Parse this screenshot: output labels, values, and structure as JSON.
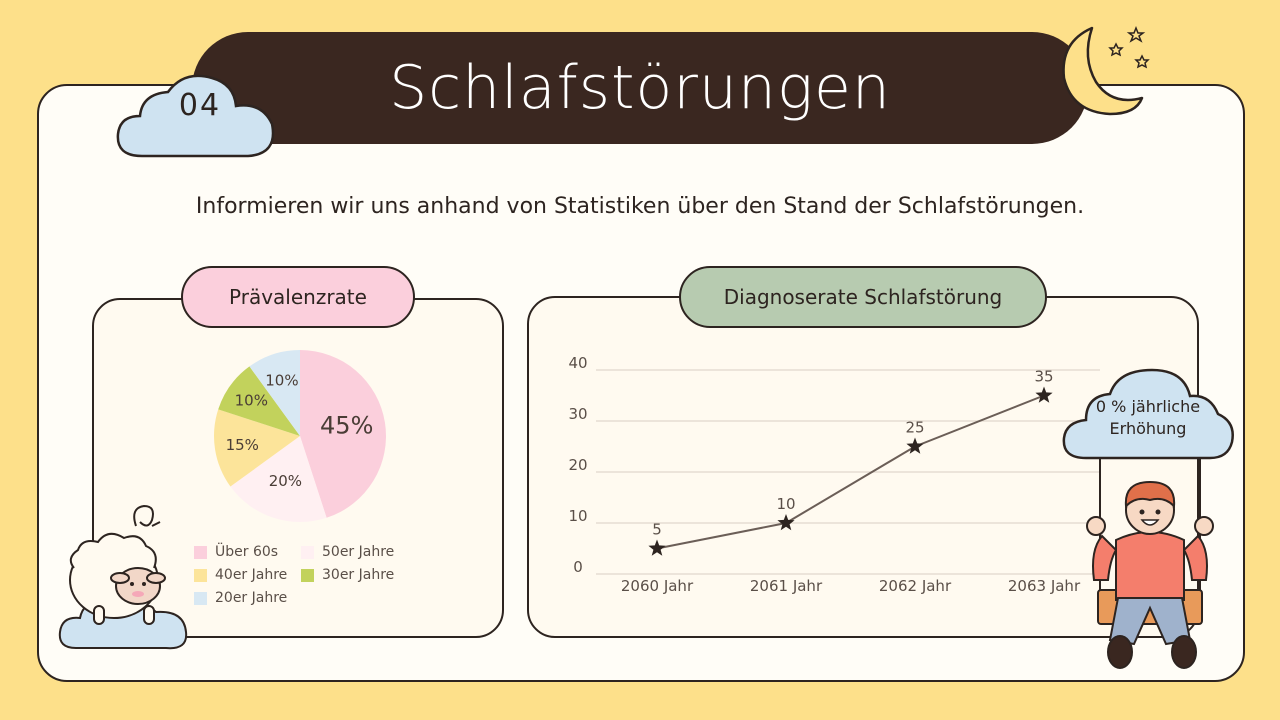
{
  "slide": {
    "number": "04",
    "title": "Schlafstörungen",
    "subtitle": "Informieren wir uns anhand von Statistiken über den Stand der Schlafstörungen."
  },
  "colors": {
    "background": "#fde08a",
    "title_banner": "#3a2720",
    "pink": "#fbcfdc",
    "green_pill": "#b7cbb0",
    "cloud": "#cfe3f1"
  },
  "pie_panel": {
    "label": "Prävalenzrate"
  },
  "line_panel": {
    "label": "Diagnoserate Schlafstörung"
  },
  "cloud_note": {
    "line1": "0 % jährliche",
    "line2": "Erhöhung"
  },
  "icons": [
    "moon-icon",
    "star-icon",
    "sheep-illustration",
    "child-on-swing-illustration",
    "cloud-icon"
  ],
  "chart_data": [
    {
      "type": "pie",
      "categories": [
        "Über 60s",
        "50er Jahre",
        "40er Jahre",
        "30er Jahre",
        "20er Jahre"
      ],
      "values": [
        45,
        20,
        15,
        10,
        10
      ],
      "value_labels": [
        "45%",
        "20%",
        "15%",
        "10%",
        "10%"
      ],
      "colors": [
        "#fbcfdc",
        "#fff0f2",
        "#fce49a",
        "#c2d25c",
        "#d8e8f3"
      ],
      "legend": [
        "Über 60s",
        "50er Jahre",
        "40er Jahre",
        "30er Jahre",
        "20er Jahre"
      ],
      "legend_placement": "bottom"
    },
    {
      "type": "line",
      "categories": [
        "2060 Jahr",
        "2061 Jahr",
        "2062 Jahr",
        "2063 Jahr"
      ],
      "values": [
        5,
        10,
        25,
        35
      ],
      "value_labels": [
        "5",
        "10",
        "25",
        "35"
      ],
      "yticks": [
        "0",
        "10",
        "20",
        "30",
        "40"
      ],
      "ylim": [
        0,
        40
      ],
      "grid": true,
      "marker": "star"
    }
  ]
}
